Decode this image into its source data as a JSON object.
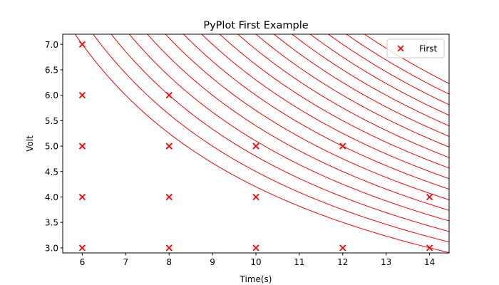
{
  "chart_data": {
    "type": "scatter",
    "title": "PyPlot First Example",
    "xlabel": "Time(s)",
    "ylabel": "Volt",
    "xlim": [
      5.55,
      14.45
    ],
    "ylim": [
      2.9,
      7.2
    ],
    "xticks": [
      6,
      7,
      8,
      9,
      10,
      11,
      12,
      13,
      14
    ],
    "yticks": [
      3.0,
      3.5,
      4.0,
      4.5,
      5.0,
      5.5,
      6.0,
      6.5,
      7.0
    ],
    "xtick_labels": [
      "6",
      "7",
      "8",
      "9",
      "10",
      "11",
      "12",
      "13",
      "14"
    ],
    "ytick_labels": [
      "3.0",
      "3.5",
      "4.0",
      "4.5",
      "5.0",
      "5.5",
      "6.0",
      "6.5",
      "7.0"
    ],
    "grid": false,
    "legend": {
      "placement": "top-right",
      "entries": [
        "First"
      ]
    },
    "series": [
      {
        "name": "First",
        "marker": "x",
        "color": "#ff0000",
        "points": [
          [
            6,
            7
          ],
          [
            6,
            6
          ],
          [
            6,
            5
          ],
          [
            6,
            4
          ],
          [
            6,
            3
          ],
          [
            8,
            6
          ],
          [
            8,
            5
          ],
          [
            8,
            4
          ],
          [
            8,
            3
          ],
          [
            10,
            5
          ],
          [
            10,
            4
          ],
          [
            10,
            3
          ],
          [
            12,
            5
          ],
          [
            12,
            3
          ],
          [
            14,
            4
          ],
          [
            14,
            3
          ]
        ]
      }
    ],
    "curves": {
      "color": "#ff0000",
      "form": "y = k / x",
      "k_values": [
        42,
        45,
        48,
        51,
        54,
        57,
        60,
        63,
        66,
        69,
        72,
        75,
        78,
        81,
        84,
        87,
        90
      ]
    }
  }
}
